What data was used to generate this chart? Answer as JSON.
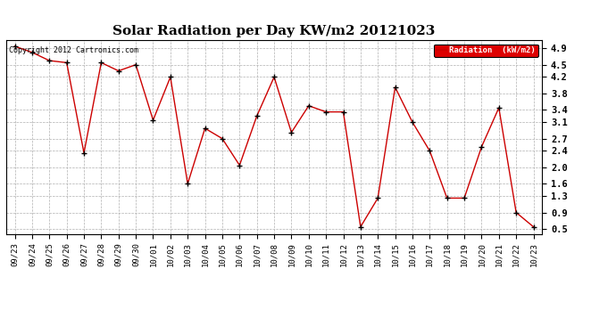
{
  "title": "Solar Radiation per Day KW/m2 20121023",
  "labels": [
    "09/23",
    "09/24",
    "09/25",
    "09/26",
    "09/27",
    "09/28",
    "09/29",
    "09/30",
    "10/01",
    "10/02",
    "10/03",
    "10/04",
    "10/05",
    "10/06",
    "10/07",
    "10/08",
    "10/09",
    "10/10",
    "10/11",
    "10/12",
    "10/13",
    "10/14",
    "10/15",
    "10/16",
    "10/17",
    "10/18",
    "10/19",
    "10/20",
    "10/21",
    "10/22",
    "10/23"
  ],
  "values": [
    4.95,
    4.8,
    4.6,
    4.55,
    2.35,
    4.55,
    4.35,
    4.5,
    3.15,
    4.2,
    1.6,
    2.95,
    2.7,
    2.05,
    3.25,
    4.2,
    2.85,
    3.5,
    3.35,
    3.35,
    0.55,
    1.25,
    3.95,
    3.1,
    2.4,
    1.25,
    1.25,
    2.5,
    3.45,
    0.9,
    0.55
  ],
  "line_color": "#cc0000",
  "marker_color": "#000000",
  "background_color": "#ffffff",
  "grid_color": "#b0b0b0",
  "ylim": [
    0.38,
    5.1
  ],
  "yticks": [
    0.5,
    0.9,
    1.3,
    1.6,
    2.0,
    2.4,
    2.7,
    3.1,
    3.4,
    3.8,
    4.2,
    4.5,
    4.9
  ],
  "legend_label": "Radiation  (kW/m2)",
  "legend_bg": "#dd0000",
  "legend_text_color": "#ffffff",
  "copyright_text": "Copyright 2012 Cartronics.com",
  "title_fontsize": 11,
  "tick_fontsize": 6.5,
  "copyright_fontsize": 6.0
}
